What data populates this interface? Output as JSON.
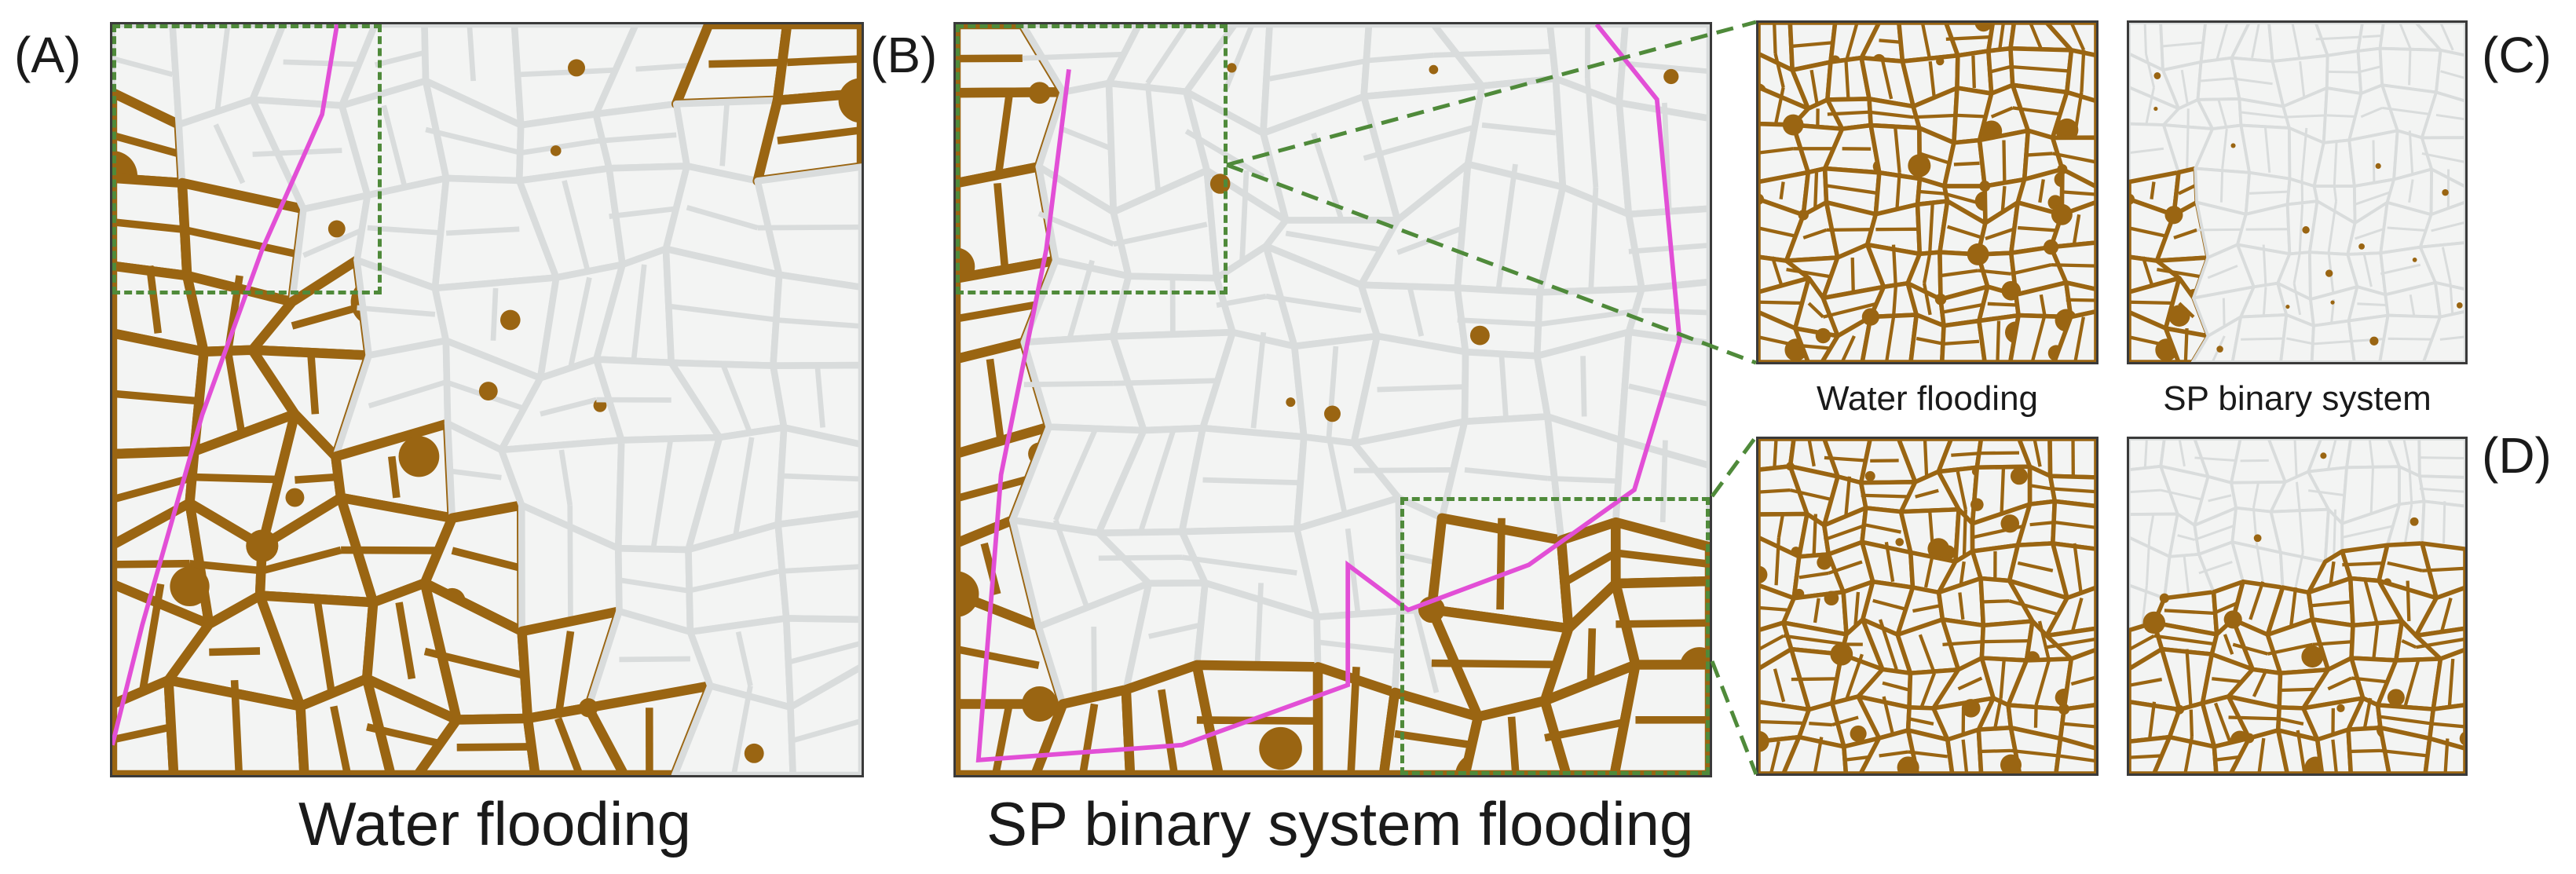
{
  "panel_labels": {
    "a": "(A)",
    "b": "(B)",
    "c": "(C)",
    "d": "(D)"
  },
  "captions": {
    "water_flooding": "Water flooding",
    "sp_flooding": "SP binary system flooding",
    "inset_water": "Water flooding",
    "inset_sp": "SP binary system"
  },
  "colors": {
    "oil": "#9a6512",
    "swept_channel": "#d9dcdc",
    "background": "#f3f4f3",
    "front_outline": "#e24fd6",
    "zoom_box": "#4f8a3a",
    "frame": "#3a3a3a"
  }
}
